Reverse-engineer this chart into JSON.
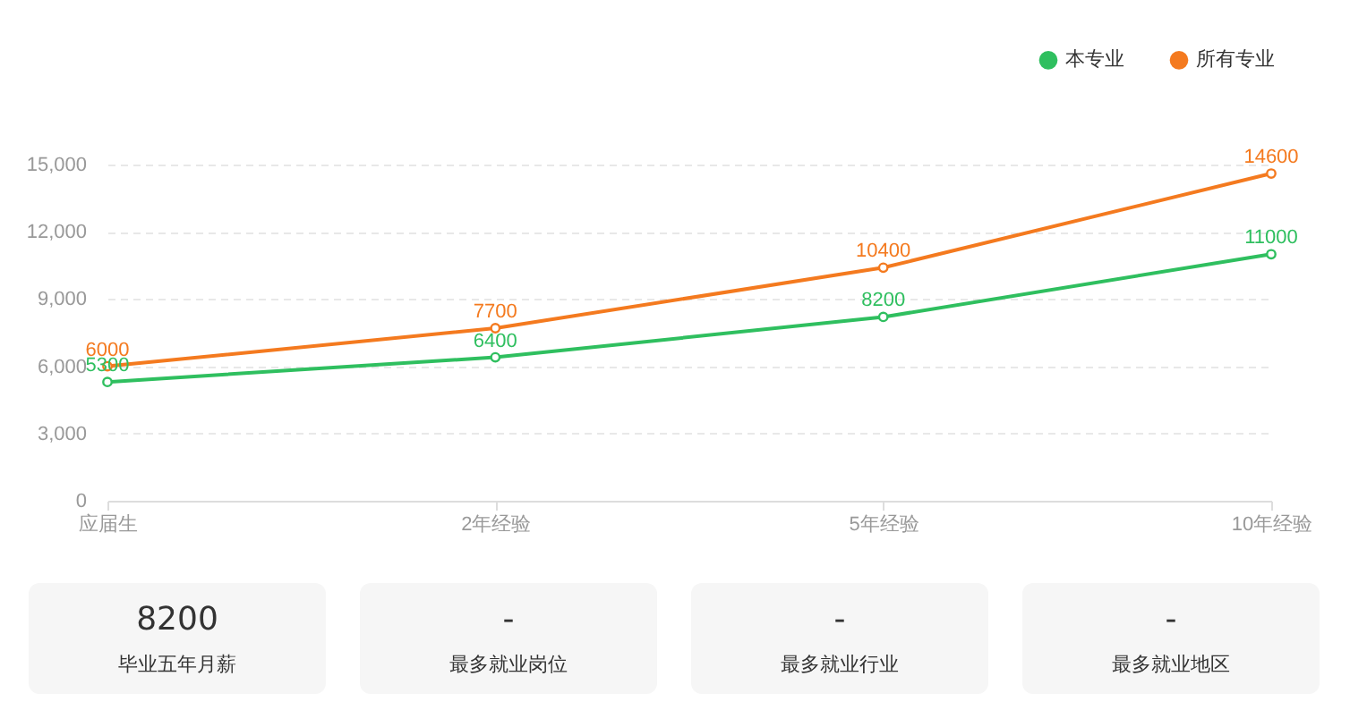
{
  "chart_data": [
    {
      "type": "line",
      "categories": [
        "应届生",
        "2年经验",
        "5年经验",
        "10年经验"
      ],
      "series": [
        {
          "name": "本专业",
          "color": "#2fbf5f",
          "values": [
            5300,
            6400,
            8200,
            11000
          ]
        },
        {
          "name": "所有专业",
          "color": "#f47a1f",
          "values": [
            6000,
            7700,
            10400,
            14600
          ]
        }
      ],
      "ylim": [
        0,
        15000
      ],
      "yticks": [
        0,
        {
          "value": 3000,
          "label": "3,000"
        },
        {
          "value": 6000,
          "label": "6,000"
        },
        {
          "value": 9000,
          "label": "9,000"
        },
        {
          "value": 12000,
          "label": "12,000"
        },
        {
          "value": 15000,
          "label": "15,000"
        }
      ],
      "grid": "y",
      "legend": "top right",
      "marker": "circle",
      "line_style": "solid",
      "data_labels": true
    },
    {
      "type": "other",
      "annotations": [
        "8200",
        "毕业五年月薪",
        "-",
        "最多就业岗位",
        "-",
        "最多就业行业",
        "-",
        "最多就业地区"
      ]
    }
  ]
}
